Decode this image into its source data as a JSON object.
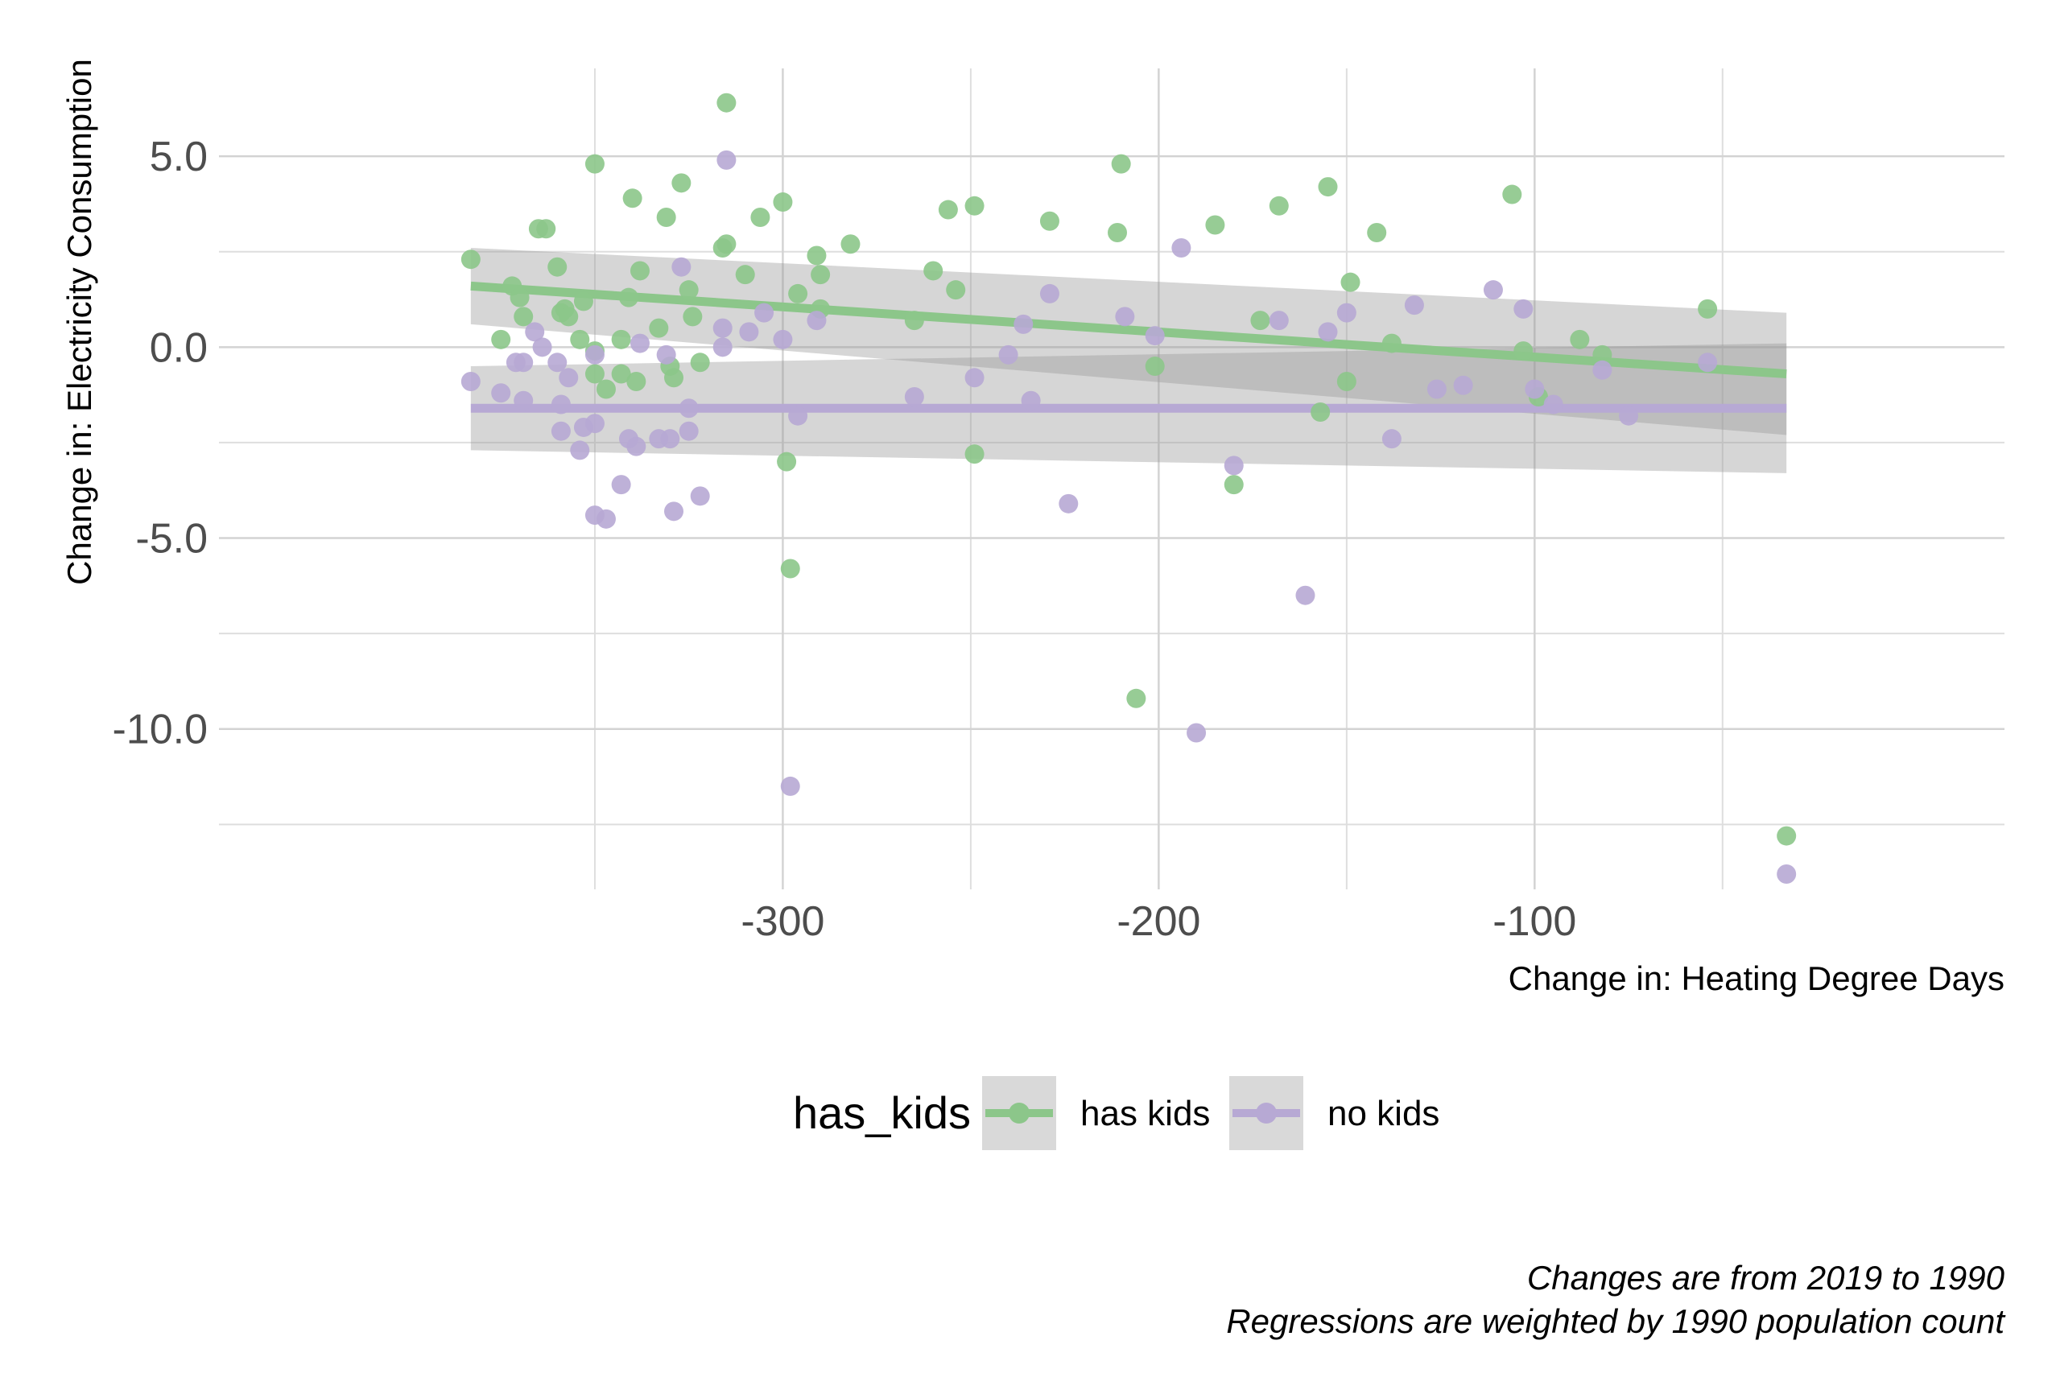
{
  "chart_data": {
    "type": "scatter",
    "xlabel": "Change in: Heating Degree Days",
    "ylabel": "Change in: Electricity Consumption",
    "xlim": [
      -450,
      25
    ],
    "ylim": [
      -14.2,
      7.3
    ],
    "x_ticks": [
      -300,
      -200,
      -100
    ],
    "x_tick_labels": [
      "-300",
      "-200",
      "-100"
    ],
    "x_minor_ticks": [
      -350,
      -250,
      -150,
      -50
    ],
    "y_ticks": [
      5,
      0,
      -5,
      -10
    ],
    "y_tick_labels": [
      "5.0",
      "0.0",
      "-5.0",
      "-10.0"
    ],
    "y_minor_ticks": [
      2.5,
      -2.5,
      -7.5,
      -12.5
    ],
    "grid": true,
    "legend": {
      "title": "has_kids",
      "position": "bottom",
      "entries": [
        "has kids",
        "no kids"
      ]
    },
    "caption": [
      "Changes are from 2019 to 1990",
      "Regressions are weighted by 1990 population count"
    ],
    "series": [
      {
        "name": "has kids",
        "color": "#8cc68a",
        "fit": {
          "x": [
            -383,
            -33
          ],
          "y": [
            1.6,
            -0.7
          ],
          "ci_lower": [
            0.6,
            -2.3
          ],
          "ci_upper": [
            2.6,
            0.9
          ]
        },
        "points": [
          [
            -383,
            2.3
          ],
          [
            -375,
            0.2
          ],
          [
            -372,
            1.6
          ],
          [
            -370,
            1.3
          ],
          [
            -369,
            0.8
          ],
          [
            -365,
            3.1
          ],
          [
            -363,
            3.1
          ],
          [
            -360,
            2.1
          ],
          [
            -359,
            0.9
          ],
          [
            -358,
            1.0
          ],
          [
            -357,
            0.8
          ],
          [
            -354,
            0.2
          ],
          [
            -353,
            1.2
          ],
          [
            -350,
            4.8
          ],
          [
            -350,
            -0.1
          ],
          [
            -350,
            -0.7
          ],
          [
            -347,
            -1.1
          ],
          [
            -343,
            -0.7
          ],
          [
            -343,
            0.2
          ],
          [
            -341,
            1.3
          ],
          [
            -340,
            3.9
          ],
          [
            -339,
            -0.9
          ],
          [
            -338,
            2.0
          ],
          [
            -333,
            0.5
          ],
          [
            -331,
            3.4
          ],
          [
            -330,
            -0.5
          ],
          [
            -329,
            -0.8
          ],
          [
            -327,
            4.3
          ],
          [
            -325,
            1.5
          ],
          [
            -324,
            0.8
          ],
          [
            -322,
            -0.4
          ],
          [
            -316,
            2.6
          ],
          [
            -315,
            2.7
          ],
          [
            -315,
            6.4
          ],
          [
            -310,
            1.9
          ],
          [
            -306,
            3.4
          ],
          [
            -300,
            3.8
          ],
          [
            -299,
            -3.0
          ],
          [
            -298,
            -5.8
          ],
          [
            -296,
            1.4
          ],
          [
            -291,
            2.4
          ],
          [
            -290,
            1.9
          ],
          [
            -290,
            1.0
          ],
          [
            -282,
            2.7
          ],
          [
            -265,
            0.7
          ],
          [
            -260,
            2.0
          ],
          [
            -256,
            3.6
          ],
          [
            -254,
            1.5
          ],
          [
            -249,
            3.7
          ],
          [
            -249,
            -2.8
          ],
          [
            -229,
            3.3
          ],
          [
            -211,
            3.0
          ],
          [
            -210,
            4.8
          ],
          [
            -206,
            -9.2
          ],
          [
            -201,
            -0.5
          ],
          [
            -185,
            3.2
          ],
          [
            -180,
            -3.6
          ],
          [
            -173,
            0.7
          ],
          [
            -168,
            3.7
          ],
          [
            -157,
            -1.7
          ],
          [
            -155,
            4.2
          ],
          [
            -150,
            -0.9
          ],
          [
            -149,
            1.7
          ],
          [
            -142,
            3.0
          ],
          [
            -138,
            0.1
          ],
          [
            -106,
            4.0
          ],
          [
            -103,
            -0.1
          ],
          [
            -99,
            -1.3
          ],
          [
            -88,
            0.2
          ],
          [
            -82,
            -0.2
          ],
          [
            -54,
            1.0
          ],
          [
            -33,
            -12.8
          ]
        ]
      },
      {
        "name": "no kids",
        "color": "#b7a9d4",
        "fit": {
          "x": [
            -383,
            -33
          ],
          "y": [
            -1.6,
            -1.6
          ],
          "ci_lower": [
            -2.7,
            -3.3
          ],
          "ci_upper": [
            -0.5,
            0.1
          ]
        },
        "points": [
          [
            -383,
            -0.9
          ],
          [
            -375,
            -1.2
          ],
          [
            -371,
            -0.4
          ],
          [
            -369,
            -0.4
          ],
          [
            -369,
            -1.4
          ],
          [
            -366,
            0.4
          ],
          [
            -364,
            0.0
          ],
          [
            -360,
            -0.4
          ],
          [
            -359,
            -1.5
          ],
          [
            -359,
            -2.2
          ],
          [
            -357,
            -0.8
          ],
          [
            -354,
            -2.7
          ],
          [
            -353,
            -2.1
          ],
          [
            -350,
            -2.0
          ],
          [
            -350,
            -4.4
          ],
          [
            -350,
            -0.2
          ],
          [
            -347,
            -4.5
          ],
          [
            -343,
            -3.6
          ],
          [
            -341,
            -2.4
          ],
          [
            -339,
            -2.6
          ],
          [
            -338,
            0.1
          ],
          [
            -333,
            -2.4
          ],
          [
            -331,
            -0.2
          ],
          [
            -330,
            -2.4
          ],
          [
            -329,
            -4.3
          ],
          [
            -327,
            2.1
          ],
          [
            -325,
            -1.6
          ],
          [
            -325,
            -2.2
          ],
          [
            -322,
            -3.9
          ],
          [
            -316,
            0.5
          ],
          [
            -316,
            0.0
          ],
          [
            -315,
            4.9
          ],
          [
            -309,
            0.4
          ],
          [
            -305,
            0.9
          ],
          [
            -300,
            0.2
          ],
          [
            -298,
            -11.5
          ],
          [
            -296,
            -1.8
          ],
          [
            -291,
            0.7
          ],
          [
            -265,
            -1.3
          ],
          [
            -249,
            -0.8
          ],
          [
            -240,
            -0.2
          ],
          [
            -236,
            0.6
          ],
          [
            -234,
            -1.4
          ],
          [
            -229,
            1.4
          ],
          [
            -224,
            -4.1
          ],
          [
            -209,
            0.8
          ],
          [
            -201,
            0.3
          ],
          [
            -194,
            2.6
          ],
          [
            -190,
            -10.1
          ],
          [
            -180,
            -3.1
          ],
          [
            -168,
            0.7
          ],
          [
            -161,
            -6.5
          ],
          [
            -155,
            0.4
          ],
          [
            -150,
            0.9
          ],
          [
            -138,
            -2.4
          ],
          [
            -132,
            1.1
          ],
          [
            -126,
            -1.1
          ],
          [
            -119,
            -1.0
          ],
          [
            -111,
            1.5
          ],
          [
            -103,
            1.0
          ],
          [
            -100,
            -1.1
          ],
          [
            -95,
            -1.5
          ],
          [
            -82,
            -0.6
          ],
          [
            -75,
            -1.8
          ],
          [
            -54,
            -0.4
          ],
          [
            -33,
            -13.8
          ]
        ]
      }
    ]
  }
}
